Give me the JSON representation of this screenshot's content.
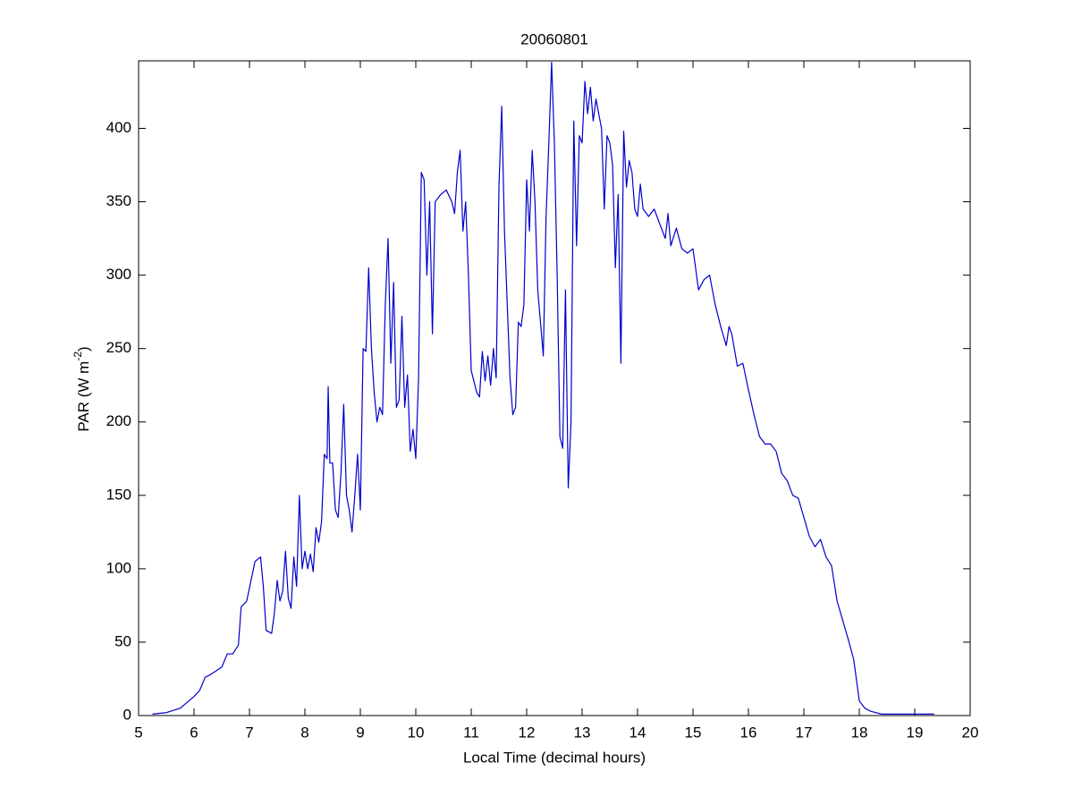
{
  "chart_data": {
    "type": "line",
    "title": "20060801",
    "xlabel": "Local Time (decimal hours)",
    "ylabel": {
      "text": "PAR (W m",
      "superscript": "-2",
      "suffix": ")"
    },
    "xlim": [
      5,
      20
    ],
    "ylim": [
      0,
      446
    ],
    "xticks": [
      5,
      6,
      7,
      8,
      9,
      10,
      11,
      12,
      13,
      14,
      15,
      16,
      17,
      18,
      19,
      20
    ],
    "yticks": [
      0,
      50,
      100,
      150,
      200,
      250,
      300,
      350,
      400
    ],
    "grid": false,
    "color": "#0000cc",
    "x": [
      5.25,
      5.5,
      5.75,
      6.0,
      6.1,
      6.2,
      6.3,
      6.5,
      6.6,
      6.7,
      6.8,
      6.85,
      6.95,
      7.1,
      7.2,
      7.25,
      7.3,
      7.4,
      7.45,
      7.5,
      7.55,
      7.6,
      7.65,
      7.7,
      7.75,
      7.8,
      7.85,
      7.9,
      7.95,
      8.0,
      8.05,
      8.1,
      8.15,
      8.2,
      8.25,
      8.3,
      8.35,
      8.4,
      8.42,
      8.45,
      8.5,
      8.55,
      8.6,
      8.65,
      8.7,
      8.75,
      8.8,
      8.85,
      8.9,
      8.95,
      9.0,
      9.05,
      9.1,
      9.15,
      9.2,
      9.25,
      9.3,
      9.35,
      9.4,
      9.45,
      9.5,
      9.55,
      9.6,
      9.65,
      9.7,
      9.75,
      9.8,
      9.85,
      9.9,
      9.95,
      10.0,
      10.05,
      10.1,
      10.15,
      10.2,
      10.25,
      10.3,
      10.35,
      10.45,
      10.55,
      10.65,
      10.7,
      10.75,
      10.8,
      10.85,
      10.9,
      10.95,
      11.0,
      11.1,
      11.15,
      11.2,
      11.25,
      11.3,
      11.35,
      11.4,
      11.45,
      11.5,
      11.55,
      11.6,
      11.65,
      11.7,
      11.75,
      11.8,
      11.85,
      11.9,
      11.95,
      12.0,
      12.05,
      12.1,
      12.15,
      12.2,
      12.3,
      12.35,
      12.4,
      12.45,
      12.5,
      12.55,
      12.6,
      12.65,
      12.7,
      12.75,
      12.8,
      12.85,
      12.9,
      12.95,
      13.0,
      13.05,
      13.1,
      13.15,
      13.2,
      13.25,
      13.3,
      13.35,
      13.4,
      13.45,
      13.5,
      13.55,
      13.6,
      13.65,
      13.7,
      13.75,
      13.8,
      13.85,
      13.9,
      13.95,
      14.0,
      14.05,
      14.1,
      14.2,
      14.3,
      14.4,
      14.5,
      14.55,
      14.6,
      14.7,
      14.8,
      14.9,
      15.0,
      15.1,
      15.2,
      15.3,
      15.4,
      15.5,
      15.6,
      15.65,
      15.7,
      15.8,
      15.9,
      16.0,
      16.1,
      16.2,
      16.3,
      16.4,
      16.5,
      16.6,
      16.7,
      16.8,
      16.9,
      17.0,
      17.1,
      17.2,
      17.3,
      17.4,
      17.5,
      17.6,
      17.7,
      17.8,
      17.9,
      18.0,
      18.1,
      18.2,
      18.4,
      18.6,
      18.8,
      19.0,
      19.35
    ],
    "values": [
      1,
      2,
      5,
      13,
      17,
      26,
      28,
      33,
      42,
      42,
      48,
      74,
      78,
      105,
      108,
      88,
      58,
      56,
      70,
      92,
      78,
      85,
      112,
      80,
      73,
      108,
      88,
      150,
      100,
      112,
      100,
      110,
      98,
      128,
      118,
      132,
      178,
      175,
      224,
      172,
      172,
      140,
      135,
      165,
      212,
      150,
      140,
      125,
      150,
      178,
      140,
      250,
      248,
      305,
      250,
      220,
      200,
      210,
      205,
      280,
      325,
      240,
      295,
      210,
      215,
      272,
      210,
      232,
      180,
      195,
      175,
      230,
      370,
      365,
      300,
      350,
      260,
      350,
      355,
      358,
      350,
      342,
      370,
      385,
      330,
      350,
      300,
      235,
      220,
      217,
      248,
      228,
      245,
      225,
      250,
      230,
      360,
      415,
      330,
      280,
      230,
      205,
      210,
      268,
      265,
      280,
      365,
      330,
      385,
      350,
      290,
      245,
      340,
      390,
      445,
      390,
      300,
      190,
      182,
      290,
      155,
      200,
      405,
      320,
      395,
      390,
      432,
      410,
      428,
      405,
      420,
      410,
      400,
      345,
      395,
      390,
      375,
      305,
      355,
      240,
      398,
      360,
      378,
      370,
      345,
      340,
      362,
      345,
      340,
      345,
      335,
      325,
      342,
      320,
      332,
      318,
      315,
      318,
      290,
      297,
      300,
      280,
      265,
      252,
      265,
      260,
      238,
      240,
      222,
      205,
      190,
      185,
      185,
      180,
      165,
      160,
      150,
      148,
      135,
      122,
      115,
      120,
      108,
      102,
      78,
      65,
      52,
      38,
      10,
      5,
      3,
      1,
      1,
      1,
      1,
      1
    ]
  }
}
